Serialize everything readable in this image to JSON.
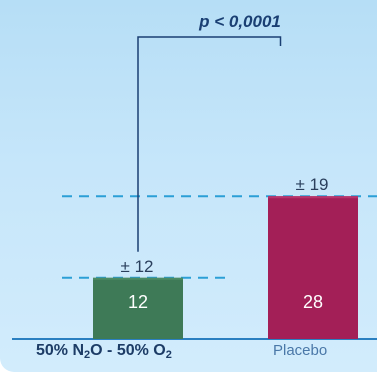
{
  "chart_data": {
    "type": "bar",
    "categories": [
      "50% N2O - 50% O2",
      "Placebo"
    ],
    "category_labels": [
      {
        "parts": [
          "50% N",
          "2",
          "O - 50% O",
          "2"
        ]
      },
      {
        "parts": [
          "Placebo"
        ]
      }
    ],
    "values": [
      12,
      28
    ],
    "value_labels": [
      "12",
      "28"
    ],
    "errors": [
      12,
      19
    ],
    "error_labels": [
      "± 12",
      "± 19"
    ],
    "significance": "p < 0,0001",
    "colors": {
      "bars": [
        "#3e7a57",
        "#a31f57"
      ],
      "bar_tops": [
        "#4c8c66",
        "#b8356b"
      ],
      "reference_lines": "#2b9fd6",
      "bracket": "#1a3f73",
      "baseline": "#2a7fc0",
      "background": "#c3e4f9"
    },
    "ylim": [
      0,
      48
    ],
    "grid": false,
    "legend": "none"
  }
}
